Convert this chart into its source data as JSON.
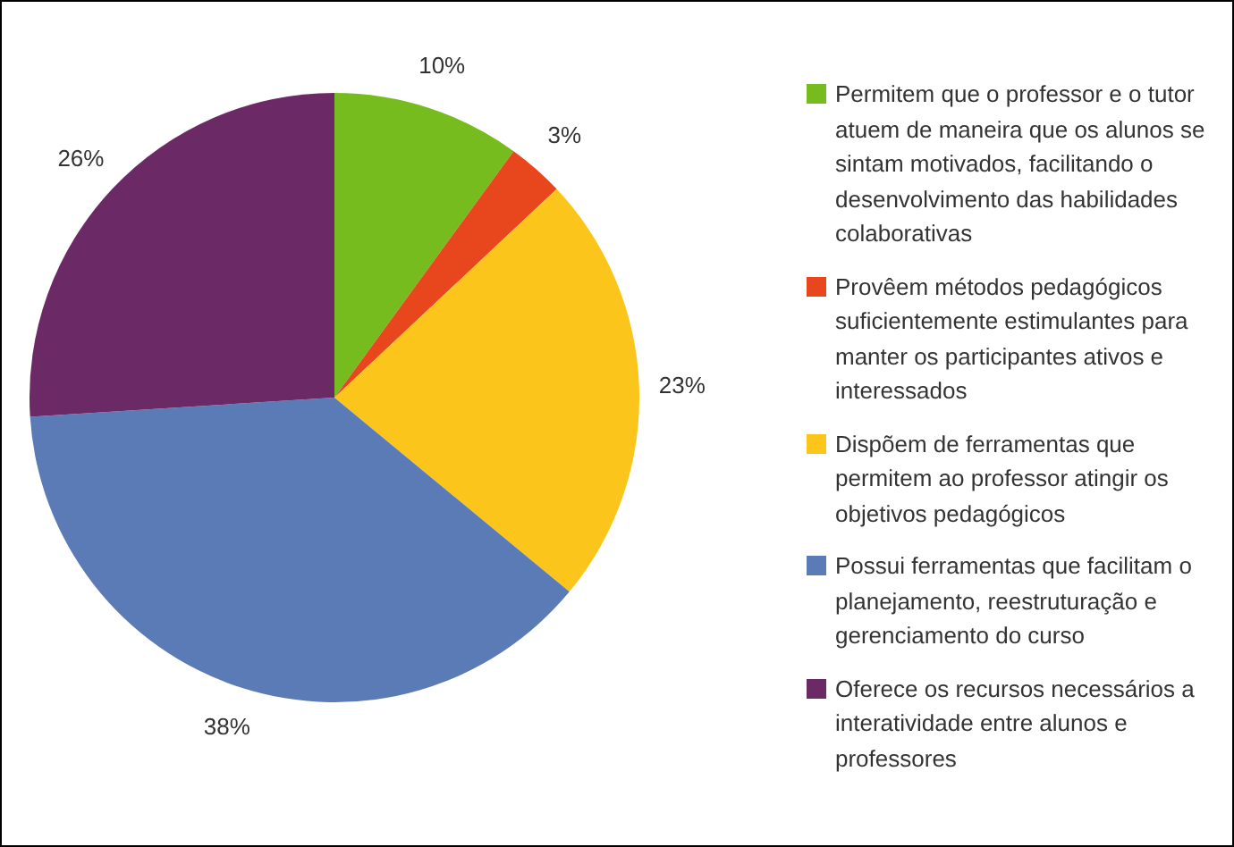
{
  "chart_data": {
    "type": "pie",
    "categories": [
      "Permitem que o professor e o tutor atuem de maneira que os alunos se sintam motivados, facilitando o desenvolvimento das habilidades colaborativas",
      "Provêem métodos pedagógicos suficientemente estimulantes para manter os participantes ativos e interessados",
      "Dispõem de ferramentas que permitem ao professor atingir os objetivos pedagógicos",
      "Possui ferramentas que facilitam o planejamento, reestruturação e gerenciamento do curso",
      "Oferece os recursos necessários a interatividade entre alunos e professores"
    ],
    "values": [
      10,
      3,
      23,
      38,
      26
    ],
    "colors": [
      "#77bc1f",
      "#e8461d",
      "#fcc51c",
      "#5b7bb6",
      "#6b2a66"
    ],
    "value_labels": [
      "10%",
      "3%",
      "23%",
      "38%",
      "26%"
    ],
    "legend": "right"
  }
}
